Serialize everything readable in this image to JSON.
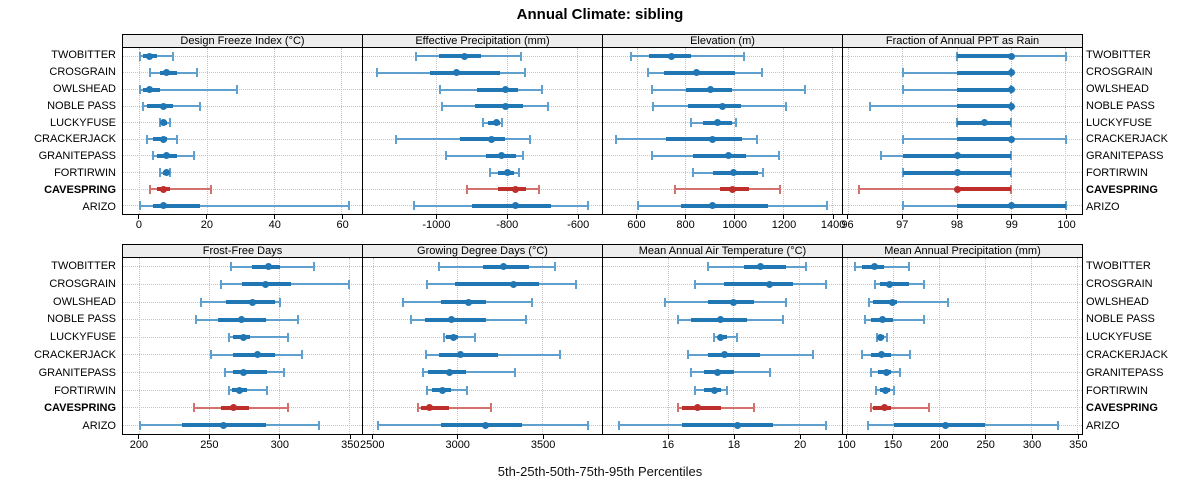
{
  "title": "Annual Climate: sibling",
  "caption": "5th-25th-50th-75th-95th Percentiles",
  "sites": [
    "TWOBITTER",
    "CROSGRAIN",
    "OWLSHEAD",
    "NOBLE PASS",
    "LUCKYFUSE",
    "CRACKERJACK",
    "GRANITEPASS",
    "FORTIRWIN",
    "CAVESPRING",
    "ARIZO"
  ],
  "highlight_site": "CAVESPRING",
  "colors": {
    "blue": "#2077B4",
    "blue_light": "#5FA0CE",
    "red": "#BE2F2B",
    "red_light": "#D3716C",
    "strip_bg": "#EDEDED",
    "grid": "#C4C4C4",
    "border": "#000000"
  },
  "chart_data": {
    "type": "interval-dotplot",
    "title": "Annual Climate: sibling",
    "xlabel": "5th-25th-50th-75th-95th Percentiles",
    "legend_position": "none",
    "grid": "dotted",
    "percentiles": [
      5,
      25,
      50,
      75,
      95
    ],
    "panels": [
      {
        "title": "Design Freeze Index (°C)",
        "xlim": [
          -5,
          66
        ],
        "ticks": [
          0,
          20,
          40,
          60
        ],
        "values": [
          [
            0,
            1,
            3,
            5,
            10
          ],
          [
            3,
            6,
            8,
            11,
            17
          ],
          [
            0,
            1,
            3,
            6,
            29
          ],
          [
            1,
            2,
            7,
            10,
            18
          ],
          [
            6,
            6.5,
            7,
            8,
            9
          ],
          [
            2,
            4,
            7,
            8,
            11
          ],
          [
            4,
            5,
            8,
            11,
            16
          ],
          [
            6,
            7,
            8,
            8.5,
            9
          ],
          [
            3,
            5,
            7,
            9,
            21
          ],
          [
            0,
            4,
            7,
            18,
            62
          ]
        ]
      },
      {
        "title": "Effective Precipitation (mm)",
        "xlim": [
          -1210,
          -530
        ],
        "ticks": [
          -1000,
          -800,
          -600
        ],
        "values": [
          [
            -1060,
            -995,
            -920,
            -875,
            -760
          ],
          [
            -1170,
            -1020,
            -945,
            -820,
            -750
          ],
          [
            -990,
            -885,
            -805,
            -770,
            -700
          ],
          [
            -985,
            -890,
            -805,
            -755,
            -685
          ],
          [
            -870,
            -855,
            -830,
            -820,
            -815
          ],
          [
            -1115,
            -935,
            -845,
            -805,
            -735
          ],
          [
            -975,
            -860,
            -815,
            -775,
            -755
          ],
          [
            -850,
            -825,
            -800,
            -780,
            -765
          ],
          [
            -915,
            -825,
            -775,
            -745,
            -710
          ],
          [
            -1065,
            -900,
            -775,
            -675,
            -570
          ]
        ]
      },
      {
        "title": "Elevation (m)",
        "xlim": [
          460,
          1440
        ],
        "ticks": [
          600,
          800,
          1000,
          1200,
          1400
        ],
        "values": [
          [
            575,
            650,
            740,
            820,
            1040
          ],
          [
            645,
            710,
            845,
            1000,
            1110
          ],
          [
            660,
            800,
            900,
            990,
            1290
          ],
          [
            665,
            810,
            950,
            1025,
            1210
          ],
          [
            820,
            870,
            930,
            990,
            1005
          ],
          [
            515,
            720,
            910,
            1030,
            1090
          ],
          [
            660,
            830,
            975,
            1045,
            1180
          ],
          [
            830,
            910,
            995,
            1095,
            1115
          ],
          [
            755,
            940,
            990,
            1060,
            1185
          ],
          [
            605,
            780,
            910,
            1135,
            1380
          ]
        ]
      },
      {
        "title": "Fraction of Annual PPT as Rain",
        "xlim": [
          95.9,
          100.3
        ],
        "ticks": [
          96,
          97,
          98,
          99,
          100
        ],
        "values": [
          [
            98,
            98,
            99,
            99,
            100
          ],
          [
            97,
            98,
            99,
            99,
            99
          ],
          [
            97,
            98,
            99,
            99,
            99
          ],
          [
            96.4,
            98,
            99,
            99,
            99
          ],
          [
            98,
            98,
            98.5,
            99,
            99
          ],
          [
            97,
            98,
            99,
            99,
            100
          ],
          [
            96.6,
            97,
            98,
            99,
            99
          ],
          [
            97,
            97,
            98,
            99,
            99
          ],
          [
            96.2,
            98,
            98,
            99,
            99
          ],
          [
            97,
            98,
            99,
            100,
            100
          ]
        ]
      },
      {
        "title": "Frost-Free Days",
        "xlim": [
          188,
          359
        ],
        "ticks": [
          200,
          250,
          300,
          350
        ],
        "values": [
          [
            265,
            280,
            292,
            300,
            325
          ],
          [
            258,
            273,
            290,
            308,
            350
          ],
          [
            244,
            262,
            281,
            297,
            300
          ],
          [
            240,
            256,
            273,
            290,
            313
          ],
          [
            264,
            267,
            274,
            279,
            306
          ],
          [
            251,
            267,
            284,
            297,
            316
          ],
          [
            261,
            267,
            274,
            291,
            303
          ],
          [
            264,
            266,
            271,
            277,
            291
          ],
          [
            239,
            258,
            267,
            278,
            306
          ],
          [
            200,
            230,
            260,
            290,
            328
          ]
        ]
      },
      {
        "title": "Growing Degree Days (°C)",
        "xlim": [
          2440,
          3850
        ],
        "ticks": [
          2500,
          3000,
          3500
        ],
        "values": [
          [
            2890,
            3150,
            3270,
            3420,
            3575
          ],
          [
            2815,
            2980,
            3325,
            3480,
            3695
          ],
          [
            2675,
            2900,
            3060,
            3165,
            3435
          ],
          [
            2725,
            2805,
            2965,
            3165,
            3400
          ],
          [
            2920,
            2930,
            2975,
            3000,
            3100
          ],
          [
            2810,
            2890,
            3015,
            3235,
            3600
          ],
          [
            2795,
            2825,
            2950,
            3050,
            3335
          ],
          [
            2820,
            2845,
            2910,
            2960,
            3055
          ],
          [
            2765,
            2785,
            2835,
            2950,
            3195
          ],
          [
            2530,
            2900,
            3165,
            3380,
            3765
          ]
        ]
      },
      {
        "title": "Mean Annual Air Temperature (°C)",
        "xlim": [
          14,
          21.3
        ],
        "ticks": [
          16,
          18,
          20
        ],
        "values": [
          [
            17.2,
            18.3,
            18.8,
            19.6,
            20.2
          ],
          [
            16.8,
            17.7,
            19.1,
            19.8,
            20.8
          ],
          [
            15.9,
            17.2,
            18.0,
            18.6,
            19.6
          ],
          [
            16.3,
            16.7,
            17.6,
            18.4,
            19.5
          ],
          [
            17.4,
            17.5,
            17.6,
            17.8,
            18.1
          ],
          [
            16.6,
            17.2,
            17.7,
            18.8,
            20.4
          ],
          [
            16.7,
            17.1,
            17.5,
            18.0,
            19.1
          ],
          [
            16.8,
            17.1,
            17.4,
            17.6,
            17.8
          ],
          [
            16.3,
            16.4,
            16.9,
            17.6,
            18.6
          ],
          [
            14.5,
            16.4,
            18.1,
            19.2,
            20.8
          ]
        ]
      },
      {
        "title": "Mean Annual Precipitation (mm)",
        "xlim": [
          95,
          355
        ],
        "ticks": [
          100,
          150,
          200,
          250,
          300,
          350
        ],
        "values": [
          [
            108,
            116,
            129,
            140,
            167
          ],
          [
            130,
            135,
            146,
            167,
            183
          ],
          [
            123,
            128,
            149,
            154,
            209
          ],
          [
            119,
            126,
            138,
            149,
            183
          ],
          [
            132,
            133,
            136,
            140,
            143
          ],
          [
            116,
            126,
            137,
            147,
            168
          ],
          [
            126,
            133,
            142,
            147,
            157
          ],
          [
            131,
            135,
            141,
            146,
            150
          ],
          [
            126,
            128,
            140,
            147,
            189
          ],
          [
            122,
            151,
            206,
            249,
            329
          ]
        ]
      }
    ]
  }
}
